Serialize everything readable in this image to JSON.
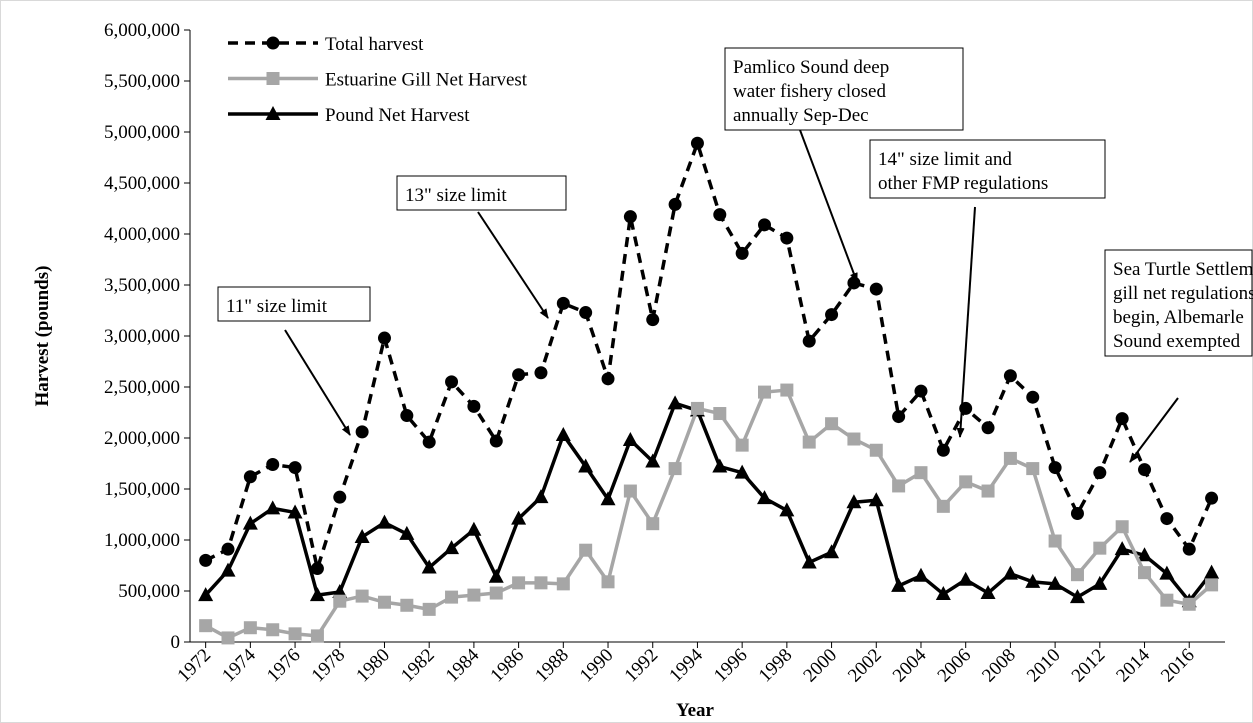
{
  "chart_data": {
    "type": "line",
    "x_label": "Year",
    "y_label": "Harvest (pounds)",
    "x": [
      1972,
      1973,
      1974,
      1975,
      1976,
      1977,
      1978,
      1979,
      1980,
      1981,
      1982,
      1983,
      1984,
      1985,
      1986,
      1987,
      1988,
      1989,
      1990,
      1991,
      1992,
      1993,
      1994,
      1995,
      1996,
      1997,
      1998,
      1999,
      2000,
      2001,
      2002,
      2003,
      2004,
      2005,
      2006,
      2007,
      2008,
      2009,
      2010,
      2011,
      2012,
      2013,
      2014,
      2015,
      2016,
      2017
    ],
    "xlim": [
      1971.3,
      2017.6
    ],
    "xticks": [
      1972,
      1974,
      1976,
      1978,
      1980,
      1982,
      1984,
      1986,
      1988,
      1990,
      1992,
      1994,
      1996,
      1998,
      2000,
      2002,
      2004,
      2006,
      2008,
      2010,
      2012,
      2014,
      2016
    ],
    "ylim": [
      0,
      6000000
    ],
    "yticks": [
      0,
      {
        "value": 500000,
        "label": "500,000"
      },
      {
        "value": 1000000,
        "label": "1,000,000"
      },
      {
        "value": 1500000,
        "label": "1,500,000"
      },
      {
        "value": 2000000,
        "label": "2,000,000"
      },
      {
        "value": 2500000,
        "label": "2,500,000"
      },
      {
        "value": 3000000,
        "label": "3,000,000"
      },
      {
        "value": 3500000,
        "label": "3,500,000"
      },
      {
        "value": 4000000,
        "label": "4,000,000"
      },
      {
        "value": 4500000,
        "label": "4,500,000"
      },
      {
        "value": 5000000,
        "label": "5,000,000"
      },
      {
        "value": 5500000,
        "label": "5,500,000"
      },
      {
        "value": 6000000,
        "label": "6,000,000"
      }
    ],
    "legend": "upper left",
    "series": [
      {
        "name": "Total harvest",
        "color": "#000000",
        "marker": "circle",
        "dashed": true,
        "values": [
          800000,
          910000,
          1620000,
          1740000,
          1710000,
          720000,
          1420000,
          2060000,
          2980000,
          2220000,
          1960000,
          2550000,
          2310000,
          1970000,
          2620000,
          2640000,
          3320000,
          3230000,
          2580000,
          4170000,
          3160000,
          4290000,
          4890000,
          4190000,
          3810000,
          4090000,
          3960000,
          2950000,
          3210000,
          3520000,
          3460000,
          2210000,
          2460000,
          1880000,
          2290000,
          2100000,
          2610000,
          2400000,
          1710000,
          1260000,
          1660000,
          2190000,
          1690000,
          1210000,
          910000,
          1410000
        ]
      },
      {
        "name": "Estuarine Gill Net Harvest",
        "color": "#a6a6a6",
        "marker": "square",
        "dashed": false,
        "values": [
          160000,
          40000,
          140000,
          120000,
          80000,
          60000,
          400000,
          450000,
          390000,
          360000,
          320000,
          440000,
          460000,
          480000,
          580000,
          580000,
          570000,
          900000,
          590000,
          1480000,
          1160000,
          1700000,
          2290000,
          2240000,
          1930000,
          2450000,
          2470000,
          1960000,
          2140000,
          1990000,
          1880000,
          1530000,
          1660000,
          1330000,
          1570000,
          1480000,
          1800000,
          1700000,
          990000,
          660000,
          920000,
          1130000,
          680000,
          410000,
          370000,
          560000
        ]
      },
      {
        "name": "Pound Net Harvest",
        "color": "#000000",
        "marker": "triangle",
        "dashed": false,
        "values": [
          460000,
          700000,
          1160000,
          1310000,
          1270000,
          460000,
          490000,
          1030000,
          1170000,
          1060000,
          730000,
          920000,
          1100000,
          640000,
          1210000,
          1420000,
          2030000,
          1720000,
          1400000,
          1980000,
          1770000,
          2340000,
          2270000,
          1720000,
          1660000,
          1410000,
          1290000,
          780000,
          880000,
          1370000,
          1390000,
          550000,
          650000,
          470000,
          610000,
          480000,
          670000,
          590000,
          570000,
          440000,
          570000,
          910000,
          850000,
          670000,
          400000,
          680000
        ]
      }
    ],
    "annotations": [
      {
        "lines": [
          "11\" size limit"
        ]
      },
      {
        "lines": [
          "13\" size limit"
        ]
      },
      {
        "lines": [
          "Pamlico Sound deep",
          "water fishery closed",
          "annually Sep-Dec"
        ]
      },
      {
        "lines": [
          "14\" size limit and",
          "other FMP regulations"
        ]
      },
      {
        "lines": [
          "Sea Turtle Settlement",
          "gill net regulations",
          "begin, Albemarle",
          "Sound exempted"
        ]
      }
    ]
  }
}
